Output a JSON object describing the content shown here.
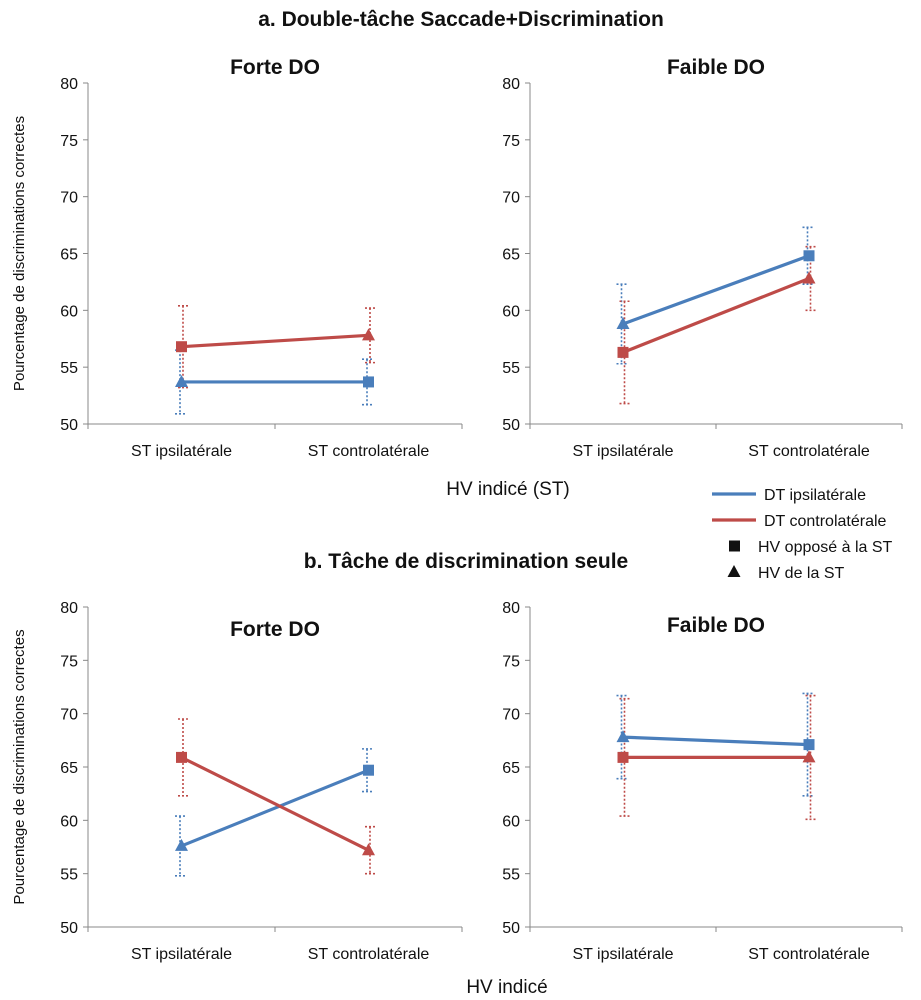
{
  "sections": [
    {
      "title": "a. Double-tâche Saccade+Discrimination",
      "xlabel": "HV indicé (ST)"
    },
    {
      "title": "b. Tâche de discrimination seule",
      "xlabel": "HV indicé"
    }
  ],
  "colors": {
    "blue": "#4a7ebb",
    "red": "#be4b48"
  },
  "legend": [
    {
      "label": "DT ipsilatérale",
      "type": "line",
      "color": "#4a7ebb"
    },
    {
      "label": "DT controlatérale",
      "type": "line",
      "color": "#be4b48"
    },
    {
      "label": "HV opposé à la ST",
      "type": "square"
    },
    {
      "label": "HV de la ST",
      "type": "triangle"
    }
  ],
  "chart_data": [
    {
      "type": "line",
      "title": "Forte DO",
      "section": 0,
      "ylabel": "Pourcentage de discriminations correctes",
      "ylim": [
        50,
        80
      ],
      "yticks": [
        50,
        55,
        60,
        65,
        70,
        75,
        80
      ],
      "categories": [
        "ST ipsilatérale",
        "ST controlatérale"
      ],
      "series": [
        {
          "name": "DT ipsilatérale",
          "color": "#4a7ebb",
          "values": [
            53.7,
            53.7
          ],
          "markers": [
            "triangle",
            "square"
          ],
          "err": [
            2.8,
            2.0
          ]
        },
        {
          "name": "DT controlatérale",
          "color": "#be4b48",
          "values": [
            56.8,
            57.8
          ],
          "markers": [
            "square",
            "triangle"
          ],
          "err": [
            3.6,
            2.4
          ]
        }
      ]
    },
    {
      "type": "line",
      "title": "Faible DO",
      "section": 0,
      "ylabel": "",
      "ylim": [
        50,
        80
      ],
      "yticks": [
        50,
        55,
        60,
        65,
        70,
        75,
        80
      ],
      "categories": [
        "ST ipsilatérale",
        "ST controlatérale"
      ],
      "series": [
        {
          "name": "DT ipsilatérale",
          "color": "#4a7ebb",
          "values": [
            58.8,
            64.8
          ],
          "markers": [
            "triangle",
            "square"
          ],
          "err": [
            3.5,
            2.5
          ]
        },
        {
          "name": "DT controlatérale",
          "color": "#be4b48",
          "values": [
            56.3,
            62.8
          ],
          "markers": [
            "square",
            "triangle"
          ],
          "err": [
            4.5,
            2.8
          ]
        }
      ]
    },
    {
      "type": "line",
      "title": "Forte DO",
      "section": 1,
      "ylabel": "Pourcentage de discriminations correctes",
      "ylim": [
        50,
        80
      ],
      "yticks": [
        50,
        55,
        60,
        65,
        70,
        75,
        80
      ],
      "categories": [
        "ST ipsilatérale",
        "ST controlatérale"
      ],
      "series": [
        {
          "name": "DT ipsilatérale",
          "color": "#4a7ebb",
          "values": [
            57.6,
            64.7
          ],
          "markers": [
            "triangle",
            "square"
          ],
          "err": [
            2.8,
            2.0
          ]
        },
        {
          "name": "DT controlatérale",
          "color": "#be4b48",
          "values": [
            65.9,
            57.2
          ],
          "markers": [
            "square",
            "triangle"
          ],
          "err": [
            3.6,
            2.2
          ]
        }
      ]
    },
    {
      "type": "line",
      "title": "Faible DO",
      "section": 1,
      "ylabel": "",
      "ylim": [
        50,
        80
      ],
      "yticks": [
        50,
        55,
        60,
        65,
        70,
        75,
        80
      ],
      "categories": [
        "ST ipsilatérale",
        "ST controlatérale"
      ],
      "series": [
        {
          "name": "DT ipsilatérale",
          "color": "#4a7ebb",
          "values": [
            67.8,
            67.1
          ],
          "markers": [
            "triangle",
            "square"
          ],
          "err": [
            3.9,
            4.8
          ]
        },
        {
          "name": "DT controlatérale",
          "color": "#be4b48",
          "values": [
            65.9,
            65.9
          ],
          "markers": [
            "square",
            "triangle"
          ],
          "err": [
            5.5,
            5.8
          ]
        }
      ]
    }
  ]
}
